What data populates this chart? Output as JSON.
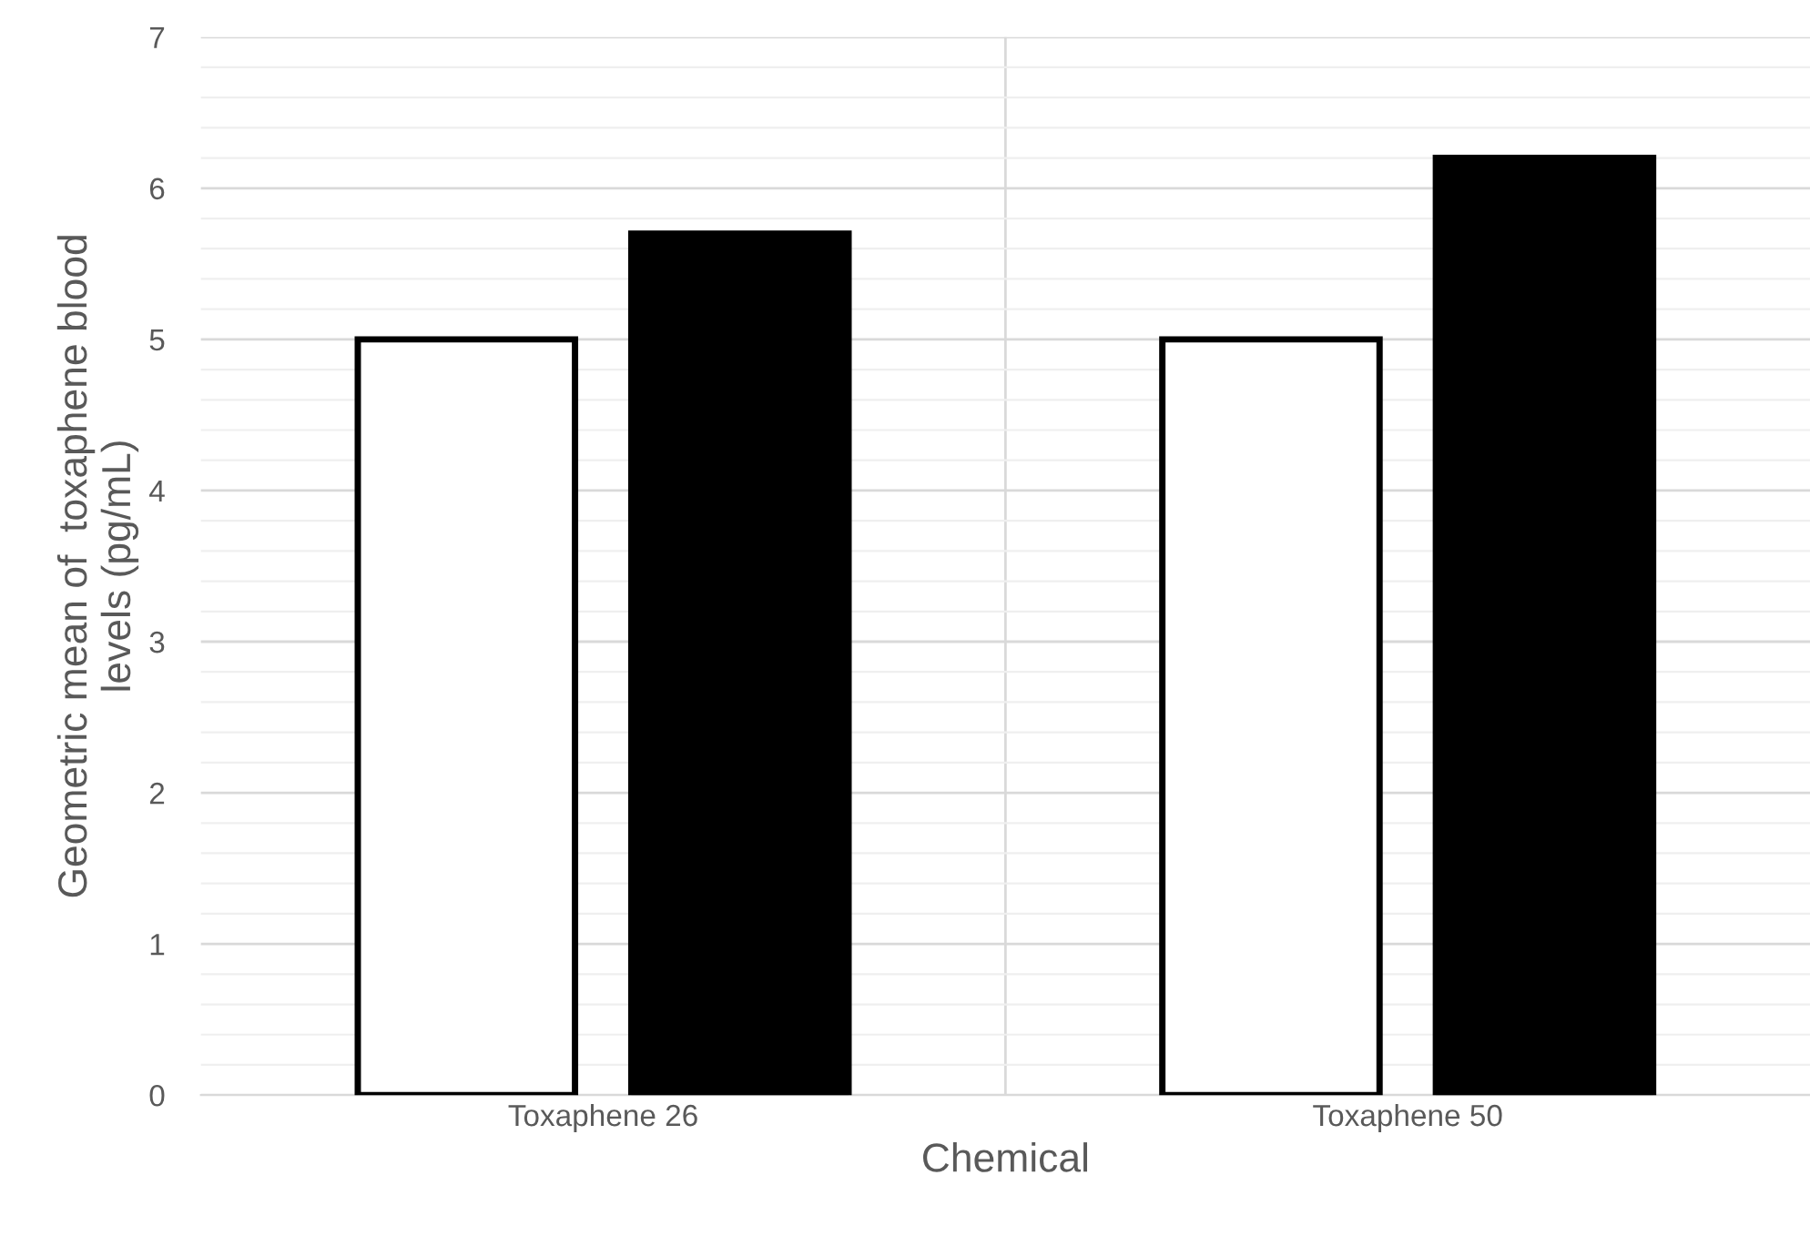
{
  "chart_data": {
    "type": "bar",
    "xlabel": "Chemical",
    "ylabel": "Geometric mean of  toxaphene blood\nlevels (pg/mL)",
    "categories": [
      "Toxaphene 26",
      "Toxaphene 50"
    ],
    "series": [
      {
        "color": "#ffffff",
        "values": [
          5,
          5
        ]
      },
      {
        "color": "#000000",
        "values": [
          5.7,
          6.2
        ]
      }
    ],
    "ylim": [
      0,
      7
    ],
    "yticks": [
      0,
      1,
      2,
      3,
      4,
      5,
      6,
      7
    ],
    "grid": true
  }
}
